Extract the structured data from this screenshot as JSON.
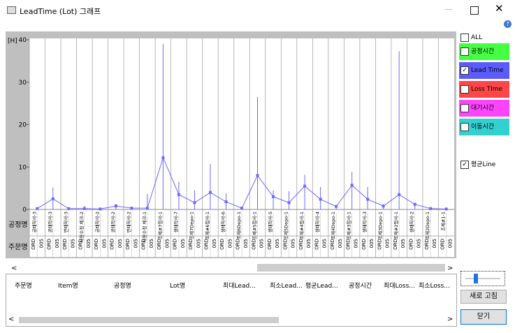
{
  "window": {
    "title": "LeadTime (Lot) 그래프",
    "help": "?"
  },
  "chart_data": {
    "type": "line",
    "y_unit": "[H]",
    "row_labels": [
      "공정명",
      "주문명"
    ],
    "ylim": [
      0,
      40
    ],
    "yticks": [
      0,
      10,
      20,
      30,
      40
    ],
    "categories": [
      "공태작사-3",
      "공태작사-3",
      "변태작사-3",
      "사용수정 체크-2",
      "공태작사-2",
      "공태작사-2",
      "변태작사-2",
      "사용수정 체크-1",
      "조제#7접사-1",
      "생태작사-7",
      "조제7Depo-1",
      "조제#6접사-1",
      "생태작사-6",
      "조제6Depo-1",
      "조제#5접사-1",
      "생태작사-5",
      "조제5Depo-1",
      "조제#4접사-1",
      "생태작사-4",
      "조제4Depo-1",
      "조제#3접사-1",
      "생태작사-3",
      "조제3Depo-1",
      "조제#2접사-1",
      "생태작사-2",
      "조제2Depo-1",
      "조제#1-1"
    ],
    "orders": [
      "ORD",
      "005"
    ],
    "series": [
      {
        "name": "Lead Time",
        "color": "#6a6aff",
        "values": [
          0.2,
          2.5,
          0.2,
          0.2,
          0.1,
          0.8,
          0.3,
          0.3,
          12.2,
          3.5,
          1.6,
          4.0,
          1.8,
          0.3,
          8.0,
          3.0,
          1.6,
          5.5,
          2.4,
          0.7,
          5.7,
          2.4,
          0.8,
          3.5,
          1.2,
          0.2,
          0.1
        ],
        "max": [
          0.4,
          5.2,
          0.4,
          0.8,
          0.3,
          1.3,
          0.5,
          3.6,
          39,
          6.5,
          4.5,
          10.7,
          3.8,
          0.6,
          26.5,
          4.5,
          4.3,
          8.2,
          5.3,
          1.0,
          8.8,
          5.3,
          1.2,
          37.3,
          1.6,
          0.5,
          0.2
        ]
      }
    ]
  },
  "legend": [
    {
      "label": "ALL",
      "checked": false
    },
    {
      "label": "공정시간",
      "color": "#44ff44",
      "checked": false
    },
    {
      "label": "Lead Time",
      "color": "#5b5bff",
      "checked": true
    },
    {
      "label": "Loss TIme",
      "color": "#ff4646",
      "checked": false
    },
    {
      "label": "대기시간",
      "color": "#ff44ff",
      "checked": false
    },
    {
      "label": "이동시간",
      "color": "#33d0d0",
      "checked": false
    }
  ],
  "average_line": {
    "label": "평균Line",
    "checked": true
  },
  "table": {
    "headers": [
      "주문명",
      "Item명",
      "공정명",
      "Lot명",
      "최대Lead...",
      "최소Lead...",
      "평균Lead...",
      "공정시간",
      "최대Loss...",
      "최소Loss..."
    ]
  },
  "buttons": {
    "refresh": "새로 고침",
    "close": "닫기"
  }
}
